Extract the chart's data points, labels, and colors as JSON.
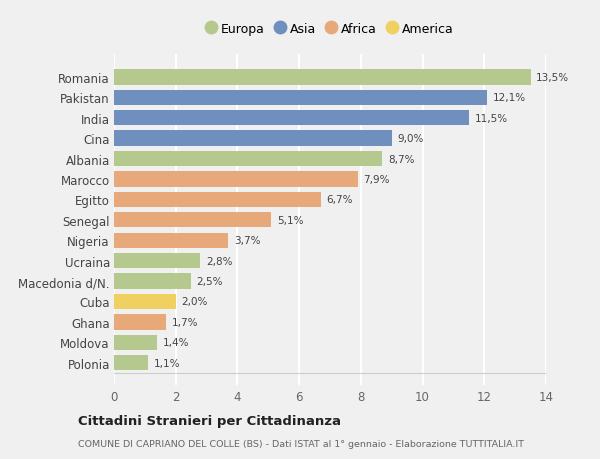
{
  "countries": [
    "Romania",
    "Pakistan",
    "India",
    "Cina",
    "Albania",
    "Marocco",
    "Egitto",
    "Senegal",
    "Nigeria",
    "Ucraina",
    "Macedonia d/N.",
    "Cuba",
    "Ghana",
    "Moldova",
    "Polonia"
  ],
  "values": [
    13.5,
    12.1,
    11.5,
    9.0,
    8.7,
    7.9,
    6.7,
    5.1,
    3.7,
    2.8,
    2.5,
    2.0,
    1.7,
    1.4,
    1.1
  ],
  "labels": [
    "13,5%",
    "12,1%",
    "11,5%",
    "9,0%",
    "8,7%",
    "7,9%",
    "6,7%",
    "5,1%",
    "3,7%",
    "2,8%",
    "2,5%",
    "2,0%",
    "1,7%",
    "1,4%",
    "1,1%"
  ],
  "continents": [
    "Europa",
    "Asia",
    "Asia",
    "Asia",
    "Europa",
    "Africa",
    "Africa",
    "Africa",
    "Africa",
    "Europa",
    "Europa",
    "America",
    "Africa",
    "Europa",
    "Europa"
  ],
  "colors": {
    "Europa": "#b5c98e",
    "Asia": "#6f8fbf",
    "Africa": "#e8a97a",
    "America": "#f0d060"
  },
  "legend_order": [
    "Europa",
    "Asia",
    "Africa",
    "America"
  ],
  "title": "Cittadini Stranieri per Cittadinanza",
  "subtitle": "COMUNE DI CAPRIANO DEL COLLE (BS) - Dati ISTAT al 1° gennaio - Elaborazione TUTTITALIA.IT",
  "xlim": [
    0,
    14
  ],
  "xticks": [
    0,
    2,
    4,
    6,
    8,
    10,
    12,
    14
  ],
  "background_color": "#f0f0f0",
  "grid_color": "#ffffff",
  "bar_height": 0.75
}
